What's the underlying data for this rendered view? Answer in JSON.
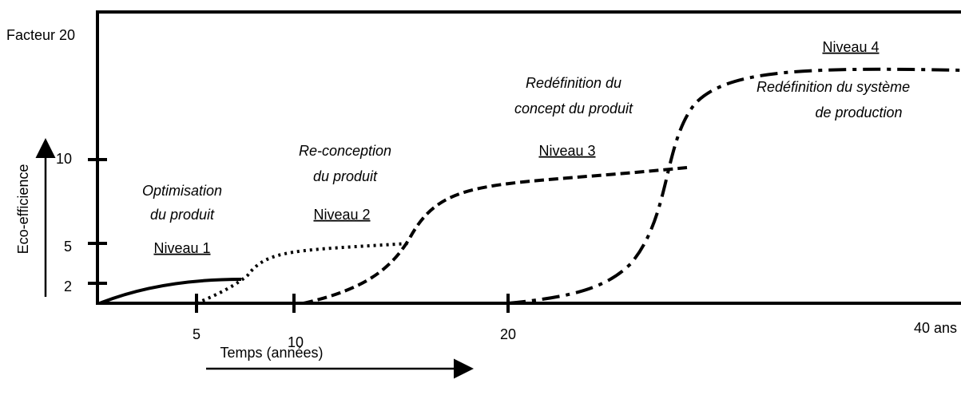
{
  "top_label": "Facteur 20",
  "y_axis": {
    "label": "Eco-efficience",
    "ticks": [
      "10",
      "5",
      "2"
    ]
  },
  "x_axis": {
    "label": "Temps (années)",
    "ticks": [
      "5",
      "10",
      "20",
      "40 ans"
    ]
  },
  "levels": [
    {
      "name": "Niveau 1",
      "description": [
        "Optimisation",
        "du produit"
      ]
    },
    {
      "name": "Niveau 2",
      "description": [
        "Re-conception",
        "du produit"
      ]
    },
    {
      "name": "Niveau 3",
      "description": [
        "Redéfinition du",
        "concept du produit"
      ]
    },
    {
      "name": "Niveau 4",
      "description": [
        "Redéfinition du système",
        "de production"
      ]
    }
  ]
}
